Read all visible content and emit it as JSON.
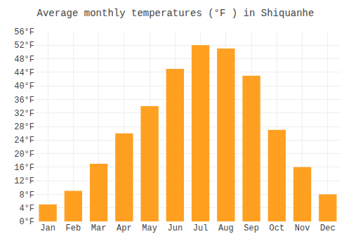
{
  "chart_data": {
    "type": "bar",
    "title": "Average monthly temperatures (°F ) in Shiquanhe",
    "categories": [
      "Jan",
      "Feb",
      "Mar",
      "Apr",
      "May",
      "Jun",
      "Jul",
      "Aug",
      "Sep",
      "Oct",
      "Nov",
      "Dec"
    ],
    "values": [
      5,
      9,
      17,
      26,
      34,
      45,
      52,
      51,
      43,
      27,
      16,
      8
    ],
    "color": "#FFA020",
    "ylim": [
      0,
      56
    ],
    "yticks": [
      {
        "value": 0,
        "label": "0°F"
      },
      {
        "value": 4,
        "label": "4°F"
      },
      {
        "value": 8,
        "label": "8°F"
      },
      {
        "value": 12,
        "label": "12°F"
      },
      {
        "value": 16,
        "label": "16°F"
      },
      {
        "value": 20,
        "label": "20°F"
      },
      {
        "value": 24,
        "label": "24°F"
      },
      {
        "value": 28,
        "label": "28°F"
      },
      {
        "value": 32,
        "label": "32°F"
      },
      {
        "value": 36,
        "label": "36°F"
      },
      {
        "value": 40,
        "label": "40°F"
      },
      {
        "value": 44,
        "label": "44°F"
      },
      {
        "value": 48,
        "label": "48°F"
      },
      {
        "value": 52,
        "label": "52°F"
      },
      {
        "value": 56,
        "label": "56°F"
      }
    ],
    "grid": true
  }
}
